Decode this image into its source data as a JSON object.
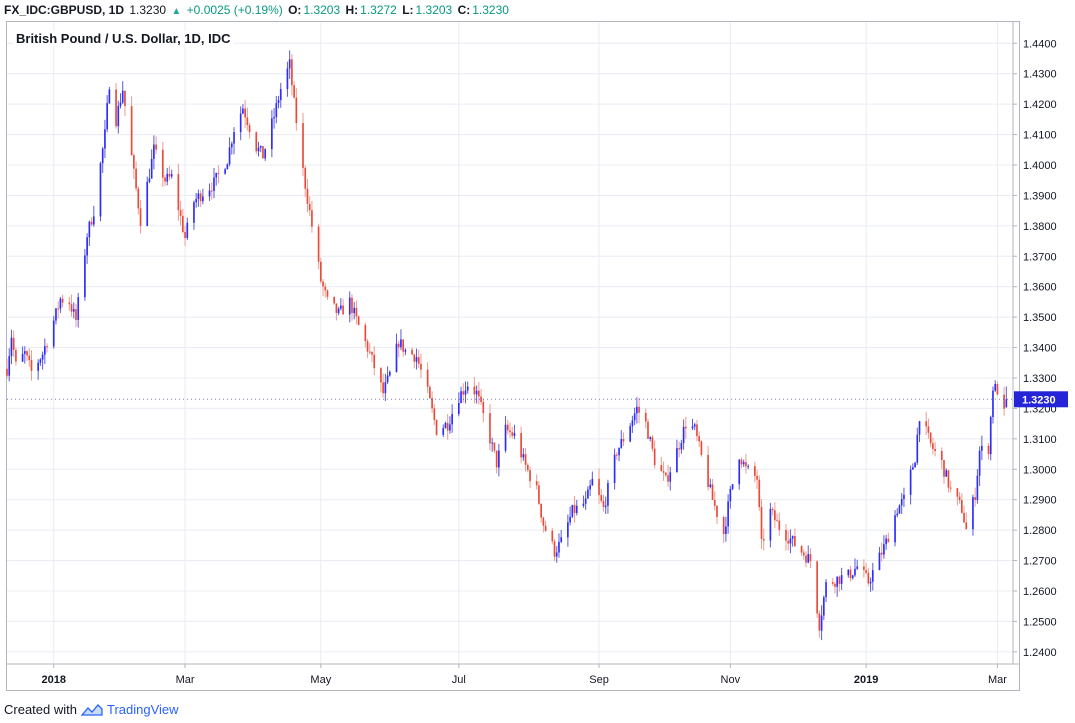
{
  "header": {
    "symbol": "FX_IDC:GBPUSD, 1D",
    "last": "1.3230",
    "change_icon": "triangle-up-icon",
    "change": "+0.0025 (+0.19%)",
    "o_label": "O:",
    "o_value": "1.3203",
    "h_label": "H:",
    "h_value": "1.3272",
    "l_label": "L:",
    "l_value": "1.3203",
    "c_label": "C:",
    "c_value": "1.3230"
  },
  "footer": {
    "created_with": "Created with",
    "brand": "TradingView",
    "logo_icon": "tradingview-logo-icon"
  },
  "colors": {
    "up": "#2c2cff",
    "down": "#e84a3a",
    "up_wick": "#5b5bd6",
    "down_wick": "#ef9a90",
    "grid": "#e8ecf2",
    "price_tag": "#2525d8"
  },
  "chart_data": {
    "type": "candlestick",
    "title": "British Pound / U.S. Dollar, 1D, IDC",
    "ylim": [
      1.236,
      1.447
    ],
    "y_ticks": [
      "1.4400",
      "1.4300",
      "1.4200",
      "1.4100",
      "1.4000",
      "1.3900",
      "1.3800",
      "1.3700",
      "1.3600",
      "1.3500",
      "1.3400",
      "1.3300",
      "1.3200",
      "1.3100",
      "1.3000",
      "1.2900",
      "1.2800",
      "1.2700",
      "1.2600",
      "1.2500",
      "1.2400"
    ],
    "x_range": [
      "2017-12-11",
      "2019-03-08"
    ],
    "x_ticks": [
      {
        "label": "2018",
        "date": "2018-01-01"
      },
      {
        "label": "Mar",
        "date": "2018-03-01"
      },
      {
        "label": "May",
        "date": "2018-05-01"
      },
      {
        "label": "Jul",
        "date": "2018-07-02"
      },
      {
        "label": "Sep",
        "date": "2018-09-03"
      },
      {
        "label": "Nov",
        "date": "2018-11-01"
      },
      {
        "label": "2019",
        "date": "2019-01-01"
      },
      {
        "label": "Mar",
        "date": "2019-03-01"
      }
    ],
    "grid": true,
    "last_price": "1.3230",
    "close_path": [
      [
        "2017-12-11",
        1.333
      ],
      [
        "2017-12-13",
        1.344
      ],
      [
        "2017-12-15",
        1.334
      ],
      [
        "2017-12-19",
        1.338
      ],
      [
        "2017-12-22",
        1.332
      ],
      [
        "2017-12-27",
        1.338
      ],
      [
        "2018-01-02",
        1.351
      ],
      [
        "2018-01-04",
        1.356
      ],
      [
        "2018-01-08",
        1.355
      ],
      [
        "2018-01-11",
        1.349
      ],
      [
        "2018-01-16",
        1.377
      ],
      [
        "2018-01-19",
        1.385
      ],
      [
        "2018-01-24",
        1.41
      ],
      [
        "2018-01-26",
        1.427
      ],
      [
        "2018-01-29",
        1.415
      ],
      [
        "2018-02-01",
        1.425
      ],
      [
        "2018-02-06",
        1.397
      ],
      [
        "2018-02-09",
        1.382
      ],
      [
        "2018-02-15",
        1.405
      ],
      [
        "2018-02-20",
        1.395
      ],
      [
        "2018-02-23",
        1.396
      ],
      [
        "2018-03-01",
        1.376
      ],
      [
        "2018-03-05",
        1.388
      ],
      [
        "2018-03-09",
        1.391
      ],
      [
        "2018-03-14",
        1.394
      ],
      [
        "2018-03-20",
        1.402
      ],
      [
        "2018-03-23",
        1.412
      ],
      [
        "2018-03-27",
        1.419
      ],
      [
        "2018-04-02",
        1.406
      ],
      [
        "2018-04-05",
        1.403
      ],
      [
        "2018-04-10",
        1.416
      ],
      [
        "2018-04-13",
        1.425
      ],
      [
        "2018-04-17",
        1.433
      ],
      [
        "2018-04-19",
        1.42
      ],
      [
        "2018-04-23",
        1.398
      ],
      [
        "2018-04-27",
        1.38
      ],
      [
        "2018-05-01",
        1.362
      ],
      [
        "2018-05-04",
        1.355
      ],
      [
        "2018-05-09",
        1.351
      ],
      [
        "2018-05-14",
        1.355
      ],
      [
        "2018-05-18",
        1.347
      ],
      [
        "2018-05-23",
        1.338
      ],
      [
        "2018-05-29",
        1.325
      ],
      [
        "2018-06-01",
        1.331
      ],
      [
        "2018-06-05",
        1.342
      ],
      [
        "2018-06-08",
        1.339
      ],
      [
        "2018-06-13",
        1.337
      ],
      [
        "2018-06-18",
        1.325
      ],
      [
        "2018-06-22",
        1.313
      ],
      [
        "2018-06-27",
        1.315
      ],
      [
        "2018-07-02",
        1.324
      ],
      [
        "2018-07-06",
        1.328
      ],
      [
        "2018-07-10",
        1.325
      ],
      [
        "2018-07-16",
        1.31
      ],
      [
        "2018-07-19",
        1.302
      ],
      [
        "2018-07-23",
        1.313
      ],
      [
        "2018-07-27",
        1.311
      ],
      [
        "2018-08-01",
        1.301
      ],
      [
        "2018-08-06",
        1.293
      ],
      [
        "2018-08-09",
        1.282
      ],
      [
        "2018-08-14",
        1.273
      ],
      [
        "2018-08-17",
        1.276
      ],
      [
        "2018-08-22",
        1.286
      ],
      [
        "2018-08-28",
        1.289
      ],
      [
        "2018-08-31",
        1.296
      ],
      [
        "2018-09-05",
        1.287
      ],
      [
        "2018-09-11",
        1.306
      ],
      [
        "2018-09-14",
        1.31
      ],
      [
        "2018-09-20",
        1.32
      ],
      [
        "2018-09-24",
        1.315
      ],
      [
        "2018-09-28",
        1.303
      ],
      [
        "2018-10-03",
        1.296
      ],
      [
        "2018-10-08",
        1.306
      ],
      [
        "2018-10-12",
        1.315
      ],
      [
        "2018-10-16",
        1.313
      ],
      [
        "2018-10-19",
        1.304
      ],
      [
        "2018-10-24",
        1.29
      ],
      [
        "2018-10-29",
        1.279
      ],
      [
        "2018-11-01",
        1.292
      ],
      [
        "2018-11-05",
        1.305
      ],
      [
        "2018-11-08",
        1.3
      ],
      [
        "2018-11-13",
        1.297
      ],
      [
        "2018-11-15",
        1.275
      ],
      [
        "2018-11-19",
        1.286
      ],
      [
        "2018-11-23",
        1.281
      ],
      [
        "2018-11-28",
        1.277
      ],
      [
        "2018-12-03",
        1.273
      ],
      [
        "2018-12-07",
        1.27
      ],
      [
        "2018-12-11",
        1.249
      ],
      [
        "2018-12-14",
        1.262
      ],
      [
        "2018-12-19",
        1.264
      ],
      [
        "2018-12-24",
        1.265
      ],
      [
        "2018-12-28",
        1.268
      ],
      [
        "2019-01-02",
        1.263
      ],
      [
        "2019-01-07",
        1.271
      ],
      [
        "2019-01-10",
        1.276
      ],
      [
        "2019-01-15",
        1.287
      ],
      [
        "2019-01-18",
        1.29
      ],
      [
        "2019-01-23",
        1.304
      ],
      [
        "2019-01-25",
        1.318
      ],
      [
        "2019-01-30",
        1.308
      ],
      [
        "2019-02-04",
        1.302
      ],
      [
        "2019-02-08",
        1.293
      ],
      [
        "2019-02-13",
        1.287
      ],
      [
        "2019-02-15",
        1.28
      ],
      [
        "2019-02-19",
        1.292
      ],
      [
        "2019-02-21",
        1.306
      ],
      [
        "2019-02-25",
        1.307
      ],
      [
        "2019-02-27",
        1.327
      ],
      [
        "2019-03-01",
        1.326
      ],
      [
        "2019-03-04",
        1.318
      ],
      [
        "2019-03-05",
        1.323
      ]
    ]
  }
}
